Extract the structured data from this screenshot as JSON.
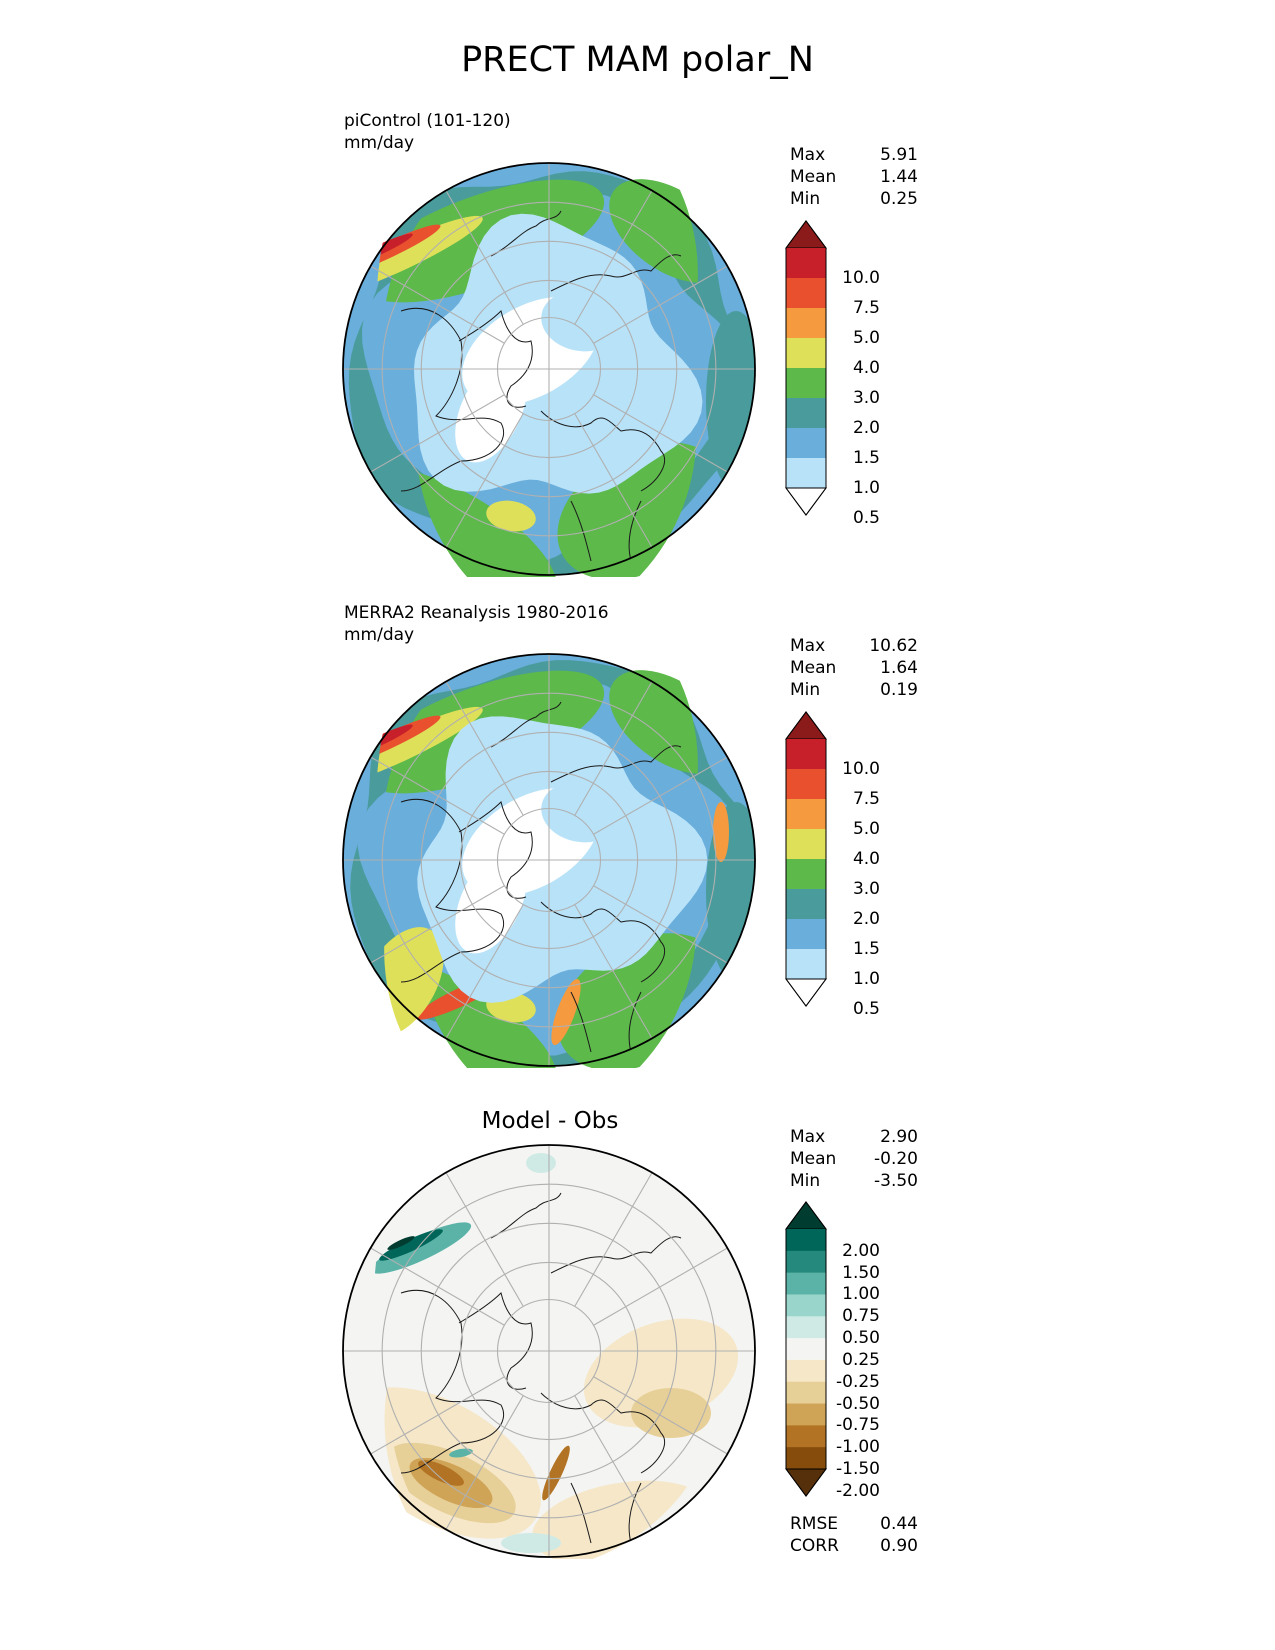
{
  "figure_title": "PRECT MAM polar_N",
  "panels": [
    {
      "caption_line1": "piControl (101-120)",
      "caption_line2": "mm/day",
      "stats": [
        {
          "label": "Max",
          "value": "5.91"
        },
        {
          "label": "Mean",
          "value": "1.44"
        },
        {
          "label": "Min",
          "value": "0.25"
        }
      ],
      "colorbar": {
        "levels": [
          "10.0",
          "7.5",
          "5.0",
          "4.0",
          "3.0",
          "2.0",
          "1.5",
          "1.0",
          "0.5"
        ],
        "colors": [
          "#8b1a1a",
          "#c8202a",
          "#e8502e",
          "#f59a3e",
          "#dfe05a",
          "#5cb94a",
          "#4a9c9c",
          "#6aaedc",
          "#b8e2f8",
          "#ffffff"
        ]
      }
    },
    {
      "caption_line1": "MERRA2 Reanalysis 1980-2016",
      "caption_line2": "mm/day",
      "stats": [
        {
          "label": "Max",
          "value": "10.62"
        },
        {
          "label": "Mean",
          "value": "1.64"
        },
        {
          "label": "Min",
          "value": "0.19"
        }
      ],
      "colorbar": {
        "levels": [
          "10.0",
          "7.5",
          "5.0",
          "4.0",
          "3.0",
          "2.0",
          "1.5",
          "1.0",
          "0.5"
        ],
        "colors": [
          "#8b1a1a",
          "#c8202a",
          "#e8502e",
          "#f59a3e",
          "#dfe05a",
          "#5cb94a",
          "#4a9c9c",
          "#6aaedc",
          "#b8e2f8",
          "#ffffff"
        ]
      }
    },
    {
      "title": "Model - Obs",
      "stats": [
        {
          "label": "Max",
          "value": "2.90"
        },
        {
          "label": "Mean",
          "value": "-0.20"
        },
        {
          "label": "Min",
          "value": "-3.50"
        }
      ],
      "colorbar": {
        "levels": [
          "2.00",
          "1.50",
          "1.00",
          "0.75",
          "0.50",
          "0.25",
          "-0.25",
          "-0.50",
          "-0.75",
          "-1.00",
          "-1.50",
          "-2.00"
        ],
        "colors": [
          "#013c30",
          "#00665a",
          "#25897d",
          "#5bb3a8",
          "#99d5cb",
          "#cfeae5",
          "#f4f4f2",
          "#f5e7c8",
          "#e7cf98",
          "#cfa457",
          "#b27424",
          "#854c0c",
          "#55300a"
        ]
      },
      "metrics": [
        {
          "label": "RMSE",
          "value": "0.44"
        },
        {
          "label": "CORR",
          "value": "0.90"
        }
      ]
    }
  ]
}
